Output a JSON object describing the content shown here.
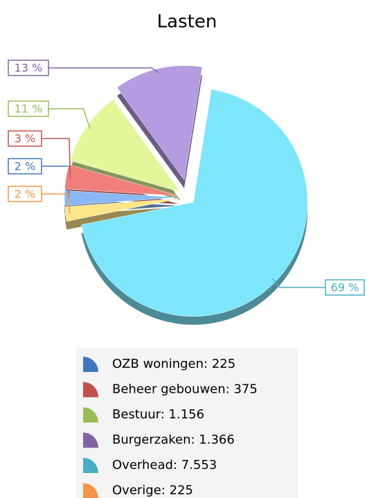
{
  "chart_data": {
    "type": "pie",
    "title": "Lasten",
    "categories": [
      "OZB woningen: 225",
      "Beheer gebouwen: 375",
      "Bestuur: 1.156",
      "Burgerzaken: 1.366",
      "Overhead: 7.553",
      "Overige: 225"
    ],
    "values": [
      2.06,
      3.44,
      10.61,
      12.53,
      69.29,
      2.06
    ],
    "value_labels": [
      "2 %",
      "3 %",
      "11 %",
      "13 %",
      "69 %",
      "2 %"
    ],
    "colors": [
      "#3f76c2",
      "#c0504d",
      "#9bbb59",
      "#8064a2",
      "#4bacc6",
      "#f79646"
    ],
    "slice_colors": [
      "#8ab8f5",
      "#f07f7c",
      "#e3f79a",
      "#b59be0",
      "#7de6fa",
      "#fde58a"
    ],
    "legend": true
  }
}
